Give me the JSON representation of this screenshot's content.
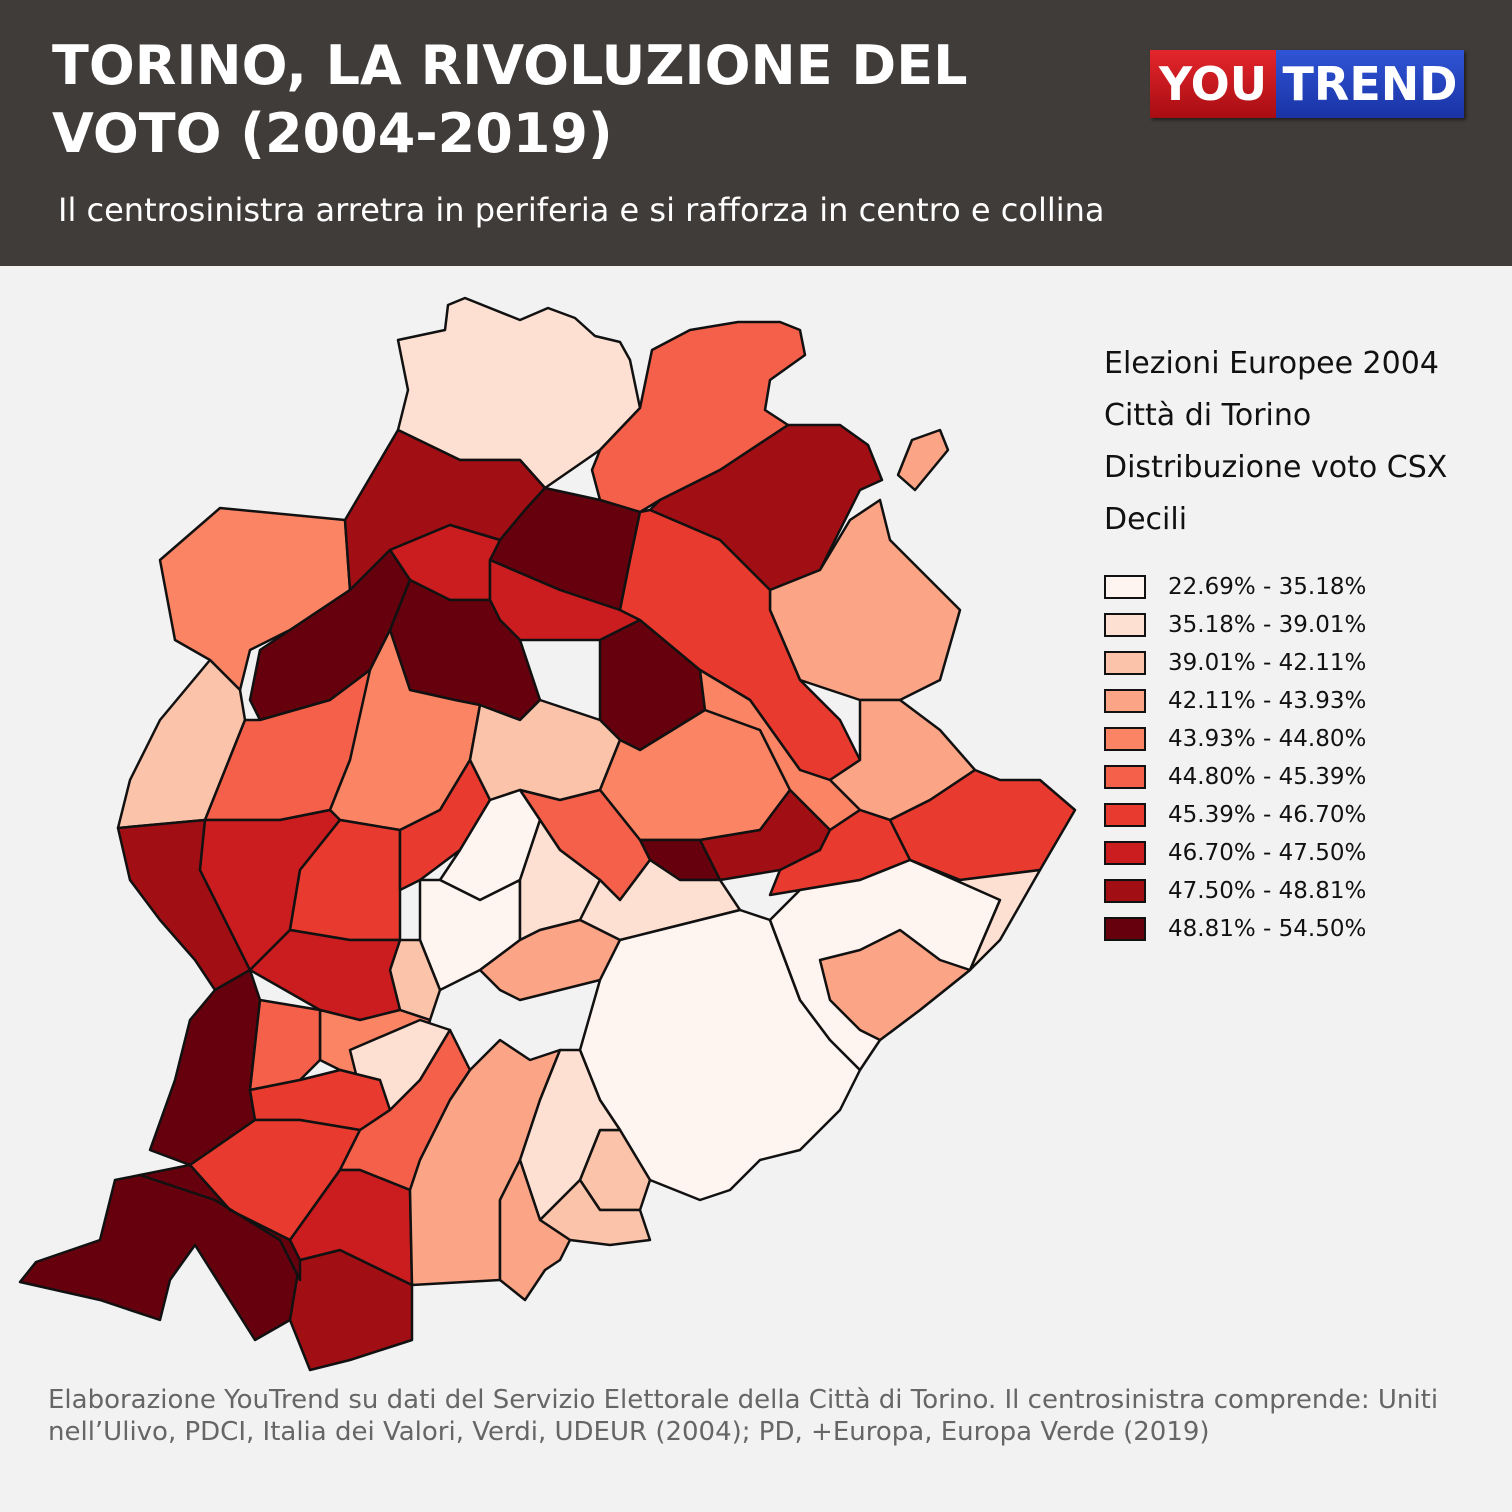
{
  "header": {
    "title": "TORINO, LA RIVOLUZIONE DEL VOTO (2004-2019)",
    "subtitle": "Il centrosinistra arretra in periferia e si rafforza in centro e collina",
    "background": "#403c3a"
  },
  "logo": {
    "left_text": "YOU",
    "right_text": "TREND",
    "left_color": "#c4151b",
    "right_color": "#2140c0"
  },
  "legend": {
    "title_lines": [
      "Elezioni Europee 2004",
      "Città di Torino",
      "Distribuzione voto CSX",
      "Decili"
    ],
    "classes": [
      {
        "label": "22.69% - 35.18%",
        "color": "#fff5f0"
      },
      {
        "label": "35.18% - 39.01%",
        "color": "#fee0d2"
      },
      {
        "label": "39.01% - 42.11%",
        "color": "#fcc3ab"
      },
      {
        "label": "42.11% - 43.93%",
        "color": "#fca486"
      },
      {
        "label": "43.93% - 44.80%",
        "color": "#fb8464"
      },
      {
        "label": "44.80% - 45.39%",
        "color": "#f5604a"
      },
      {
        "label": "45.39% - 46.70%",
        "color": "#e83a2e"
      },
      {
        "label": "46.70% - 47.50%",
        "color": "#cb1d1f"
      },
      {
        "label": "47.50% - 48.81%",
        "color": "#a10f15"
      },
      {
        "label": "48.81% - 54.50%",
        "color": "#67000d"
      }
    ]
  },
  "map": {
    "border_color": "#111111",
    "districts": [
      {
        "name": "north-tip",
        "decile": 1
      },
      {
        "name": "north-east-orange",
        "decile": 5
      },
      {
        "name": "far-north-east-dark",
        "decile": 8
      },
      {
        "name": "east-small-island",
        "decile": 3
      },
      {
        "name": "north-west-orange",
        "decile": 4
      },
      {
        "name": "north-mid-darkred",
        "decile": 8
      },
      {
        "name": "north-mid-darkest",
        "decile": 9
      },
      {
        "name": "north-center-red",
        "decile": 7
      },
      {
        "name": "west-light",
        "decile": 2
      },
      {
        "name": "west-darkest",
        "decile": 9
      },
      {
        "name": "north-east-salmon",
        "decile": 3
      },
      {
        "name": "center-north-red-a",
        "decile": 7
      },
      {
        "name": "center-north-darkest-a",
        "decile": 9
      },
      {
        "name": "center-north-darkest-b",
        "decile": 9
      },
      {
        "name": "east-bank-red",
        "decile": 6
      },
      {
        "name": "east-bank-salmon",
        "decile": 3
      },
      {
        "name": "west-mid-orange",
        "decile": 5
      },
      {
        "name": "center-west-orange",
        "decile": 4
      },
      {
        "name": "center-west-light",
        "decile": 2
      },
      {
        "name": "center-orange",
        "decile": 4
      },
      {
        "name": "center-east-orange",
        "decile": 4
      },
      {
        "name": "center-east-red",
        "decile": 6
      },
      {
        "name": "river-darkred",
        "decile": 8
      },
      {
        "name": "river-darkest",
        "decile": 9
      },
      {
        "name": "east-redorange",
        "decile": 6
      },
      {
        "name": "west-darkred-band",
        "decile": 8
      },
      {
        "name": "south-west-darkest",
        "decile": 9
      },
      {
        "name": "south-west-darkest-2",
        "decile": 9
      },
      {
        "name": "south-darkred",
        "decile": 8
      },
      {
        "name": "west-red",
        "decile": 7
      },
      {
        "name": "center-red-a",
        "decile": 6
      },
      {
        "name": "center-red-b",
        "decile": 6
      },
      {
        "name": "center-orange-b",
        "decile": 5
      },
      {
        "name": "center-lightest-a",
        "decile": 0
      },
      {
        "name": "center-lightest-b",
        "decile": 0
      },
      {
        "name": "center-light-a",
        "decile": 1
      },
      {
        "name": "center-light-b",
        "decile": 1
      },
      {
        "name": "center-salmon-a",
        "decile": 2
      },
      {
        "name": "center-salmon-b",
        "decile": 3
      },
      {
        "name": "south-mid-red",
        "decile": 7
      },
      {
        "name": "south-mid-orange",
        "decile": 4
      },
      {
        "name": "south-mid-orange-b",
        "decile": 5
      },
      {
        "name": "south-light",
        "decile": 1
      },
      {
        "name": "south-red-a",
        "decile": 6
      },
      {
        "name": "south-red-b",
        "decile": 6
      },
      {
        "name": "south-orange-c",
        "decile": 5
      },
      {
        "name": "south-darkest",
        "decile": 9
      },
      {
        "name": "south-redmid",
        "decile": 7
      },
      {
        "name": "south-salmon",
        "decile": 3
      },
      {
        "name": "hill-lightest",
        "decile": 0
      },
      {
        "name": "hill-lightest-b",
        "decile": 0
      },
      {
        "name": "hill-light",
        "decile": 1
      },
      {
        "name": "hill-salmon",
        "decile": 3
      },
      {
        "name": "hill-salmon-b",
        "decile": 2
      },
      {
        "name": "south-east-light",
        "decile": 1
      },
      {
        "name": "south-east-salmon",
        "decile": 2
      },
      {
        "name": "east-salmon-strip",
        "decile": 3
      }
    ]
  },
  "footer": {
    "source_text": "Elaborazione YouTrend su dati del Servizio Elettorale della Città di Torino. Il centrosinistra comprende: Uniti nell’Ulivo, PDCI, Italia dei Valori, Verdi, UDEUR (2004); PD, +Europa, Europa Verde (2019)"
  }
}
